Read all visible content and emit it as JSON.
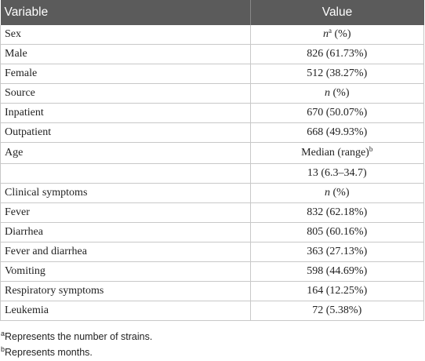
{
  "table": {
    "header": [
      "Variable",
      "Value"
    ],
    "rows": [
      {
        "variable": "Sex",
        "value": [
          {
            "text": "n",
            "style": "italic"
          },
          {
            "text": "a",
            "style": "sup"
          },
          {
            "text": " (%)"
          }
        ]
      },
      {
        "variable": "Male",
        "value": "826 (61.73%)"
      },
      {
        "variable": "Female",
        "value": "512 (38.27%)"
      },
      {
        "variable": "Source",
        "value": [
          {
            "text": "n",
            "style": "italic"
          },
          {
            "text": " (%)"
          }
        ]
      },
      {
        "variable": "Inpatient",
        "value": "670 (50.07%)"
      },
      {
        "variable": "Outpatient",
        "value": "668 (49.93%)"
      },
      {
        "variable": "Age",
        "value": [
          {
            "text": "Median (range)"
          },
          {
            "text": "b",
            "style": "sup"
          }
        ]
      },
      {
        "variable": null,
        "value": "13 (6.3–34.7)"
      },
      {
        "variable": "Clinical symptoms",
        "value": [
          {
            "text": "n",
            "style": "italic"
          },
          {
            "text": " (%)"
          }
        ]
      },
      {
        "variable": "Fever",
        "value": "832 (62.18%)"
      },
      {
        "variable": "Diarrhea",
        "value": "805 (60.16%)"
      },
      {
        "variable": "Fever and diarrhea",
        "value": "363 (27.13%)"
      },
      {
        "variable": "Vomiting",
        "value": "598 (44.69%)"
      },
      {
        "variable": "Respiratory symptoms",
        "value": "164 (12.25%)"
      },
      {
        "variable": "Leukemia",
        "value": "72 (5.38%)"
      }
    ]
  },
  "footnotes": [
    {
      "mark": "a",
      "text": "Represents the number of strains."
    },
    {
      "mark": "b",
      "text": "Represents months."
    }
  ]
}
